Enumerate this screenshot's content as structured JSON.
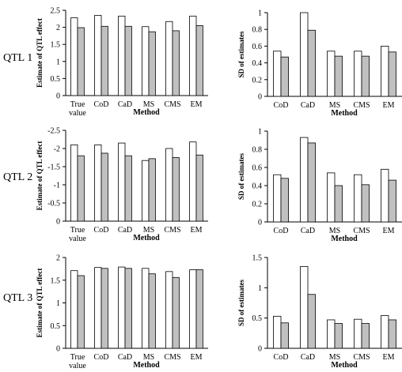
{
  "row_labels": [
    "QTL 1",
    "QTL 2",
    "QTL 3"
  ],
  "chart_data": [
    {
      "type": "bar",
      "categories": [
        "True value",
        "CoD",
        "CaD",
        "MS",
        "CMS",
        "EM"
      ],
      "series": [
        {
          "values": [
            2.28,
            2.35,
            2.33,
            2.02,
            2.17,
            2.33
          ],
          "color": "#ffffff"
        },
        {
          "values": [
            1.99,
            2.03,
            2.03,
            1.87,
            1.9,
            2.05
          ],
          "color": "#c0c0c0"
        }
      ],
      "xlabel": "Method",
      "ylabel": "Estimate of QTL effect",
      "ylim": [
        0,
        2.5
      ],
      "yticks": [
        "0",
        "0.5",
        "1",
        "1.5",
        "2",
        "2.5"
      ]
    },
    {
      "type": "bar",
      "categories": [
        "CoD",
        "CaD",
        "MS",
        "CMS",
        "EM"
      ],
      "series": [
        {
          "values": [
            0.54,
            1.0,
            0.54,
            0.54,
            0.6
          ],
          "color": "#ffffff"
        },
        {
          "values": [
            0.47,
            0.79,
            0.48,
            0.48,
            0.53
          ],
          "color": "#c0c0c0"
        }
      ],
      "xlabel": "Method",
      "ylabel": "SD of estimates",
      "ylim": [
        0,
        1
      ],
      "yticks": [
        "0",
        "0.2",
        "0.4",
        "0.6",
        "0.8",
        "1"
      ]
    },
    {
      "type": "bar",
      "categories": [
        "True value",
        "CoD",
        "CaD",
        "MS",
        "CMS",
        "EM"
      ],
      "series": [
        {
          "values": [
            -2.1,
            -2.1,
            -2.15,
            -1.67,
            -2.0,
            -2.18
          ],
          "color": "#ffffff"
        },
        {
          "values": [
            -1.8,
            -1.87,
            -1.8,
            -1.72,
            -1.75,
            -1.82
          ],
          "color": "#c0c0c0"
        }
      ],
      "xlabel": "Method",
      "ylabel": "Estimate of QTL effect",
      "ylim": [
        0,
        -2.5
      ],
      "yticks": [
        "0",
        "-0.5",
        "-1",
        "-1.5",
        "-2",
        "-2.5"
      ]
    },
    {
      "type": "bar",
      "categories": [
        "CoD",
        "CaD",
        "MS",
        "CMS",
        "EM"
      ],
      "series": [
        {
          "values": [
            0.52,
            0.93,
            0.54,
            0.52,
            0.58
          ],
          "color": "#ffffff"
        },
        {
          "values": [
            0.48,
            0.87,
            0.4,
            0.41,
            0.46
          ],
          "color": "#c0c0c0"
        }
      ],
      "xlabel": "Method",
      "ylabel": "SD of estimates",
      "ylim": [
        0,
        1
      ],
      "yticks": [
        "0",
        "0.2",
        "0.4",
        "0.6",
        "0.8",
        "1"
      ]
    },
    {
      "type": "bar",
      "categories": [
        "True value",
        "CoD",
        "CaD",
        "MS",
        "CMS",
        "EM"
      ],
      "series": [
        {
          "values": [
            1.71,
            1.78,
            1.79,
            1.76,
            1.69,
            1.73
          ],
          "color": "#ffffff"
        },
        {
          "values": [
            1.6,
            1.76,
            1.76,
            1.64,
            1.56,
            1.73
          ],
          "color": "#c0c0c0"
        }
      ],
      "xlabel": "Method",
      "ylabel": "Estimate of QTL effect",
      "ylim": [
        0,
        2
      ],
      "yticks": [
        "0",
        "0.5",
        "1",
        "1.5",
        "2"
      ]
    },
    {
      "type": "bar",
      "categories": [
        "CoD",
        "CaD",
        "MS",
        "CMS",
        "EM"
      ],
      "series": [
        {
          "values": [
            0.53,
            1.35,
            0.47,
            0.48,
            0.54
          ],
          "color": "#ffffff"
        },
        {
          "values": [
            0.42,
            0.89,
            0.41,
            0.41,
            0.47
          ],
          "color": "#c0c0c0"
        }
      ],
      "xlabel": "Method",
      "ylabel": "SD of estimates",
      "ylim": [
        0,
        1.5
      ],
      "yticks": [
        "0",
        "0.5",
        "1",
        "1.5"
      ]
    }
  ]
}
